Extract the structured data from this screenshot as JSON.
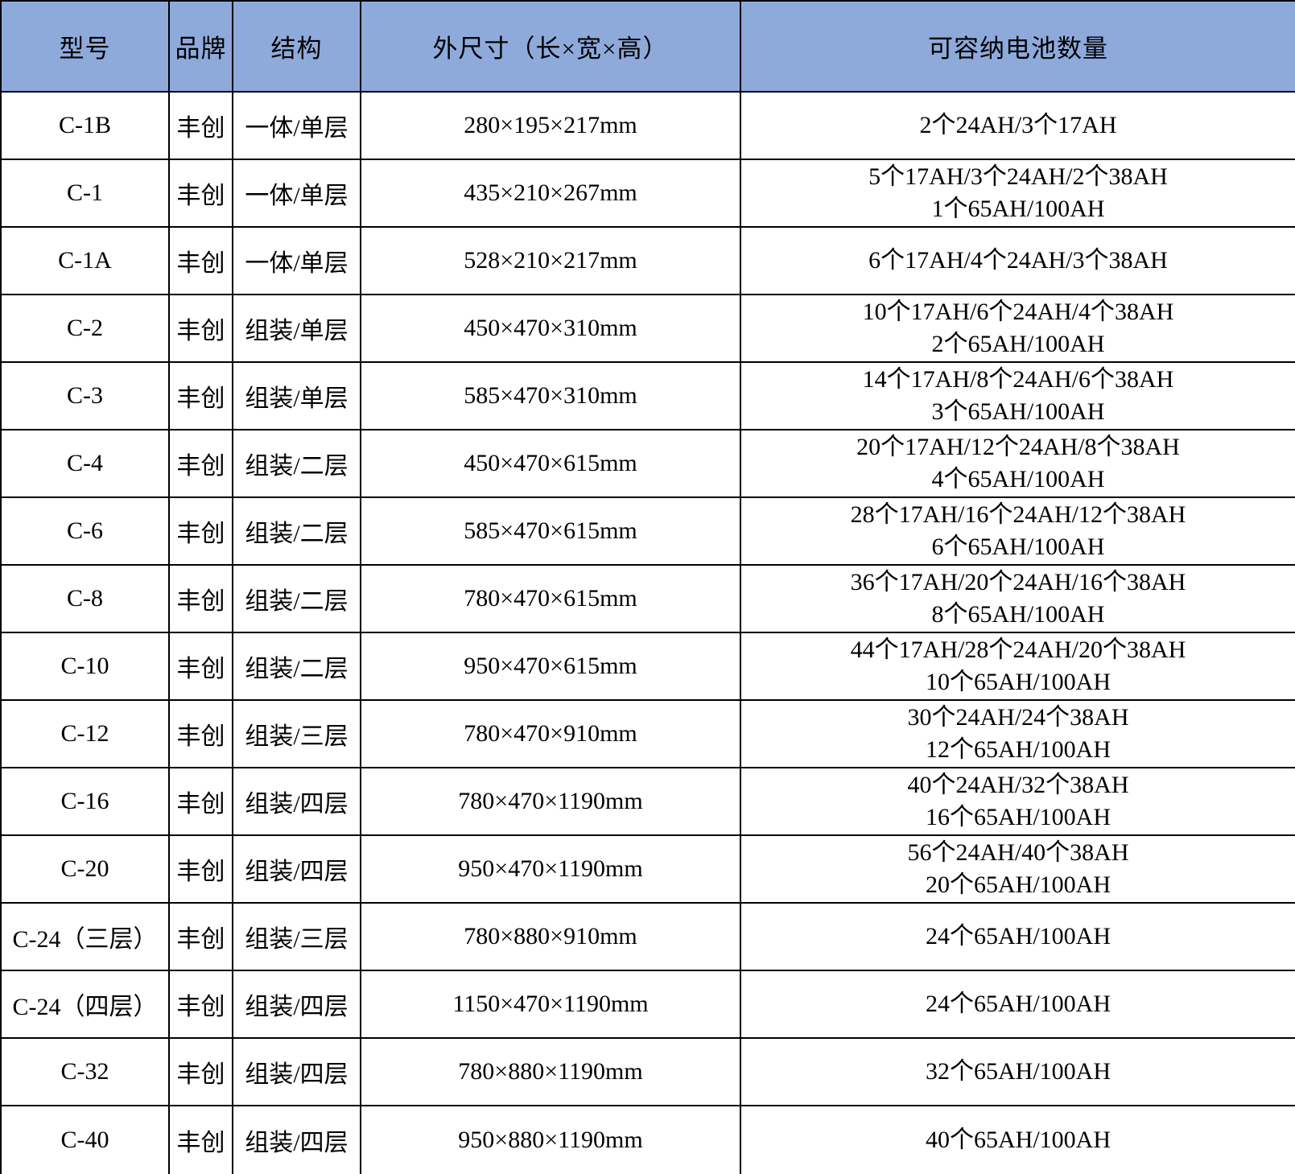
{
  "page": {
    "background": "#ffffff",
    "text_color": "#000000"
  },
  "table": {
    "name": "battery-cabinet-spec-table",
    "header_bg": "#8EAADB",
    "border_color": "#000000",
    "columns": [
      "型号",
      "品牌",
      "结构",
      "外尺寸（长×宽×高）",
      "可容纳电池数量"
    ],
    "rows": [
      {
        "model": "C-1B",
        "brand": "丰创",
        "structure": "一体/单层",
        "dimensions": "280×195×217mm",
        "capacity": [
          "2个24AH/3个17AH"
        ]
      },
      {
        "model": "C-1",
        "brand": "丰创",
        "structure": "一体/单层",
        "dimensions": "435×210×267mm",
        "capacity": [
          "5个17AH/3个24AH/2个38AH",
          "1个65AH/100AH"
        ]
      },
      {
        "model": "C-1A",
        "brand": "丰创",
        "structure": "一体/单层",
        "dimensions": "528×210×217mm",
        "capacity": [
          "6个17AH/4个24AH/3个38AH"
        ]
      },
      {
        "model": "C-2",
        "brand": "丰创",
        "structure": "组装/单层",
        "dimensions": "450×470×310mm",
        "capacity": [
          "10个17AH/6个24AH/4个38AH",
          "2个65AH/100AH"
        ]
      },
      {
        "model": "C-3",
        "brand": "丰创",
        "structure": "组装/单层",
        "dimensions": "585×470×310mm",
        "capacity": [
          "14个17AH/8个24AH/6个38AH",
          "3个65AH/100AH"
        ]
      },
      {
        "model": "C-4",
        "brand": "丰创",
        "structure": "组装/二层",
        "dimensions": "450×470×615mm",
        "capacity": [
          "20个17AH/12个24AH/8个38AH",
          "4个65AH/100AH"
        ]
      },
      {
        "model": "C-6",
        "brand": "丰创",
        "structure": "组装/二层",
        "dimensions": "585×470×615mm",
        "capacity": [
          "28个17AH/16个24AH/12个38AH",
          "6个65AH/100AH"
        ]
      },
      {
        "model": "C-8",
        "brand": "丰创",
        "structure": "组装/二层",
        "dimensions": "780×470×615mm",
        "capacity": [
          "36个17AH/20个24AH/16个38AH",
          "8个65AH/100AH"
        ]
      },
      {
        "model": "C-10",
        "brand": "丰创",
        "structure": "组装/二层",
        "dimensions": "950×470×615mm",
        "capacity": [
          "44个17AH/28个24AH/20个38AH",
          "10个65AH/100AH"
        ]
      },
      {
        "model": "C-12",
        "brand": "丰创",
        "structure": "组装/三层",
        "dimensions": "780×470×910mm",
        "capacity": [
          "30个24AH/24个38AH",
          "12个65AH/100AH"
        ]
      },
      {
        "model": "C-16",
        "brand": "丰创",
        "structure": "组装/四层",
        "dimensions": "780×470×1190mm",
        "capacity": [
          "40个24AH/32个38AH",
          "16个65AH/100AH"
        ]
      },
      {
        "model": "C-20",
        "brand": "丰创",
        "structure": "组装/四层",
        "dimensions": "950×470×1190mm",
        "capacity": [
          "56个24AH/40个38AH",
          "20个65AH/100AH"
        ]
      },
      {
        "model": "C-24（三层）",
        "brand": "丰创",
        "structure": "组装/三层",
        "dimensions": "780×880×910mm",
        "capacity": [
          "24个65AH/100AH"
        ]
      },
      {
        "model": "C-24（四层）",
        "brand": "丰创",
        "structure": "组装/四层",
        "dimensions": "1150×470×1190mm",
        "capacity": [
          "24个65AH/100AH"
        ]
      },
      {
        "model": "C-32",
        "brand": "丰创",
        "structure": "组装/四层",
        "dimensions": "780×880×1190mm",
        "capacity": [
          "32个65AH/100AH"
        ]
      },
      {
        "model": "C-40",
        "brand": "丰创",
        "structure": "组装/四层",
        "dimensions": "950×880×1190mm",
        "capacity": [
          "40个65AH/100AH"
        ]
      }
    ]
  }
}
